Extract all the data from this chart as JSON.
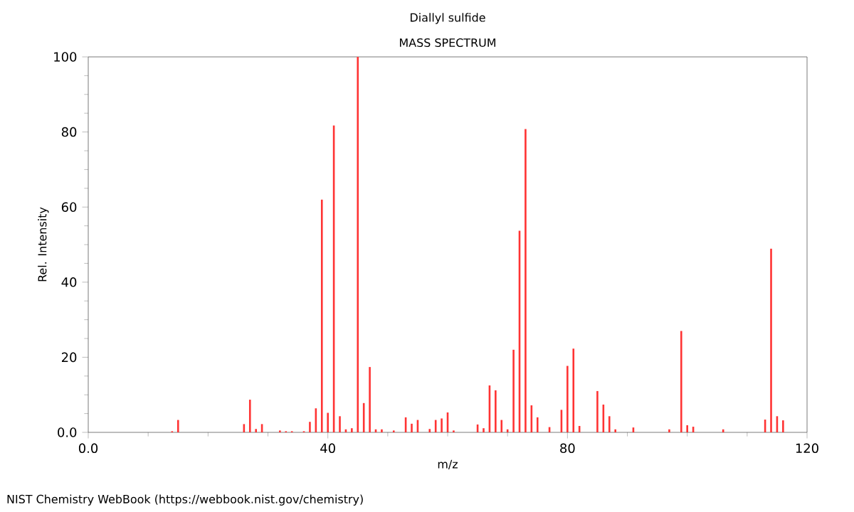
{
  "chart_data": {
    "type": "bar",
    "title": "Diallyl sulfide",
    "subtitle": "MASS SPECTRUM",
    "xlabel": "m/z",
    "ylabel": "Rel. Intensity",
    "x": [
      14,
      15,
      26,
      27,
      28,
      29,
      32,
      33,
      34,
      36,
      37,
      38,
      39,
      40,
      41,
      42,
      43,
      44,
      45,
      46,
      47,
      48,
      49,
      51,
      53,
      54,
      55,
      57,
      58,
      59,
      60,
      61,
      65,
      66,
      67,
      68,
      69,
      70,
      71,
      72,
      73,
      74,
      75,
      77,
      79,
      80,
      81,
      82,
      85,
      86,
      87,
      88,
      91,
      97,
      99,
      100,
      101,
      106,
      113,
      114,
      115,
      116
    ],
    "values": [
      0.3,
      3.3,
      2.2,
      8.7,
      0.9,
      2.2,
      0.5,
      0.3,
      0.3,
      0.3,
      2.8,
      6.4,
      62,
      5.2,
      81.7,
      4.3,
      0.8,
      1.1,
      100,
      7.8,
      17.4,
      0.8,
      0.8,
      0.5,
      4,
      2.3,
      3.3,
      0.9,
      3.3,
      3.7,
      5.3,
      0.5,
      2.1,
      1.1,
      12.5,
      11.2,
      3.3,
      0.8,
      22,
      53.7,
      80.8,
      7.2,
      4,
      1.4,
      6,
      17.7,
      22.3,
      1.7,
      11,
      7.4,
      4.3,
      0.8,
      1.3,
      0.8,
      27,
      1.9,
      1.5,
      0.8,
      3.4,
      48.9,
      4.3,
      3.2
    ],
    "color": "#ff3333",
    "xlim": [
      0,
      120
    ],
    "xticks": [
      {
        "value": 0,
        "label": "0.0"
      },
      40,
      80,
      120
    ],
    "ylim": [
      0,
      100
    ],
    "yticks": [
      {
        "value": 0,
        "label": "0.0"
      },
      20,
      40,
      60,
      80,
      100
    ],
    "annotations": [
      "NIST Chemistry WebBook (https://webbook.nist.gov/chemistry)"
    ]
  }
}
